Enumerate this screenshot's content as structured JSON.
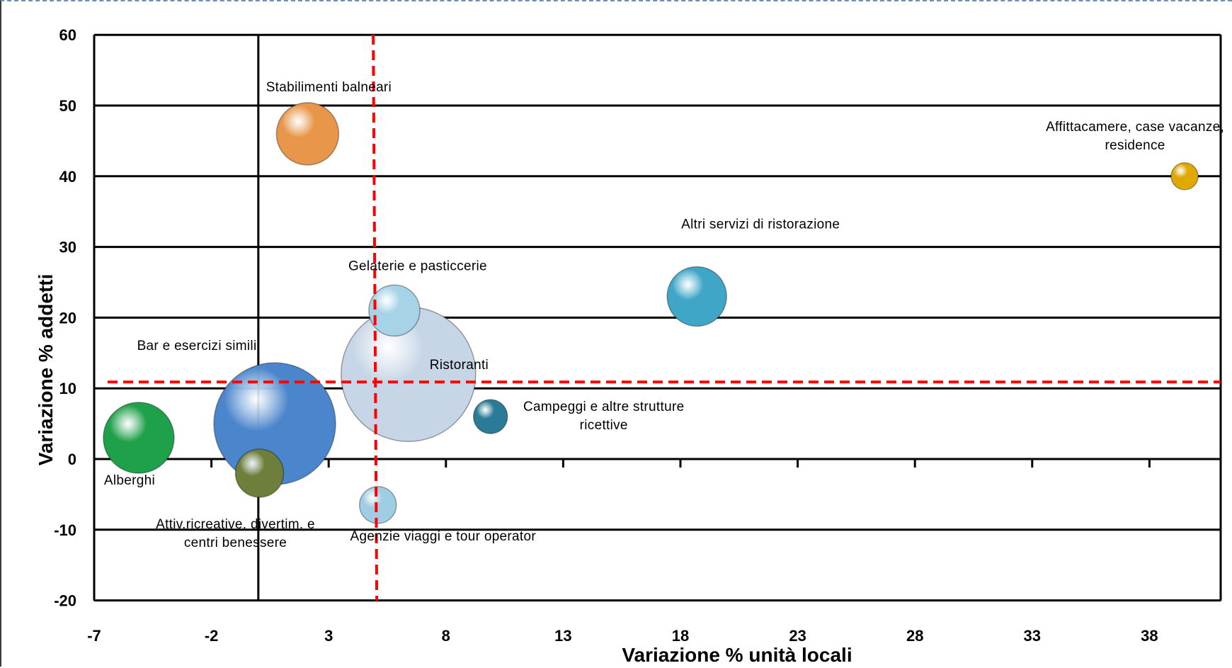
{
  "chart_data": {
    "type": "scatter",
    "subtype": "bubble",
    "xlabel": "Variazione % unità locali",
    "ylabel": "Variazione % addetti",
    "xlim": [
      -7,
      41.5
    ],
    "ylim": [
      -20,
      60
    ],
    "x_ticks": [
      "-7",
      "-2",
      "3",
      "8",
      "13",
      "18",
      "23",
      "28",
      "33",
      "38"
    ],
    "y_ticks": [
      "-20",
      "-10",
      "0",
      "10",
      "20",
      "30",
      "40",
      "50",
      "60"
    ],
    "grid": "horizontal",
    "reference_lines": {
      "x": 4.9,
      "y": 10.9,
      "color": "#ff0000",
      "style": "dashed"
    },
    "points": [
      {
        "label": "Stabilimenti balneari",
        "x": 2.1,
        "y": 46,
        "size": 44,
        "color": "#e8964a"
      },
      {
        "label": "Affittacamere, case vacanze, residence",
        "x": 39.5,
        "y": 40,
        "size": 19,
        "color": "#e0a800"
      },
      {
        "label": "Altri servizi di ristorazione",
        "x": 18.7,
        "y": 23,
        "size": 42,
        "color": "#3fa6c8"
      },
      {
        "label": "Gelaterie e pasticcerie",
        "x": 5.8,
        "y": 21,
        "size": 36,
        "color": "#a7d3e6"
      },
      {
        "label": "Ristoranti",
        "x": 6.4,
        "y": 12,
        "size": 95,
        "color": "#c6d6e6"
      },
      {
        "label": "Bar e esercizi simili",
        "x": 0.7,
        "y": 5,
        "size": 86,
        "color": "#4b86cc"
      },
      {
        "label": "Campeggi e altre strutture ricettive",
        "x": 9.9,
        "y": 6,
        "size": 24,
        "color": "#2a7b97"
      },
      {
        "label": "Alberghi",
        "x": -5.1,
        "y": 3,
        "size": 50,
        "color": "#1fa04a"
      },
      {
        "label": "Attiv.ricreative, divertim. e centri benessere",
        "x": 0.05,
        "y": -2,
        "size": 34,
        "color": "#6d7f3a"
      },
      {
        "label": "Agenzie viaggi e tour operator",
        "x": 5.1,
        "y": -6.5,
        "size": 26,
        "color": "#9fcde3"
      }
    ]
  }
}
